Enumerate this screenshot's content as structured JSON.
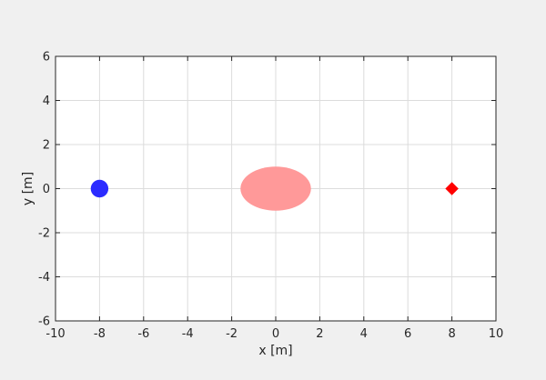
{
  "chart_data": {
    "type": "scatter",
    "title": "",
    "xlabel": "x [m]",
    "ylabel": "y [m]",
    "xlim": [
      -10,
      10
    ],
    "ylim": [
      -6,
      6
    ],
    "xticks": [
      -10,
      -8,
      -6,
      -4,
      -2,
      0,
      2,
      4,
      6,
      8,
      10
    ],
    "yticks": [
      -6,
      -4,
      -2,
      0,
      2,
      4,
      6
    ],
    "grid": true,
    "background_color": "#f0f0f0",
    "axes_color": "#ffffff",
    "grid_color": "#dcdcdc",
    "elements": [
      {
        "name": "blue-circle",
        "shape": "circle",
        "x": -8,
        "y": 0,
        "radius": 0.4,
        "color": "#2b2bff"
      },
      {
        "name": "red-ellipse",
        "shape": "ellipse",
        "x": 0,
        "y": 0,
        "rx": 1.6,
        "ry": 1.0,
        "color": "#ff9999"
      },
      {
        "name": "red-diamond",
        "shape": "diamond",
        "x": 8,
        "y": 0,
        "size": 0.3,
        "color": "#ff0000"
      }
    ]
  }
}
